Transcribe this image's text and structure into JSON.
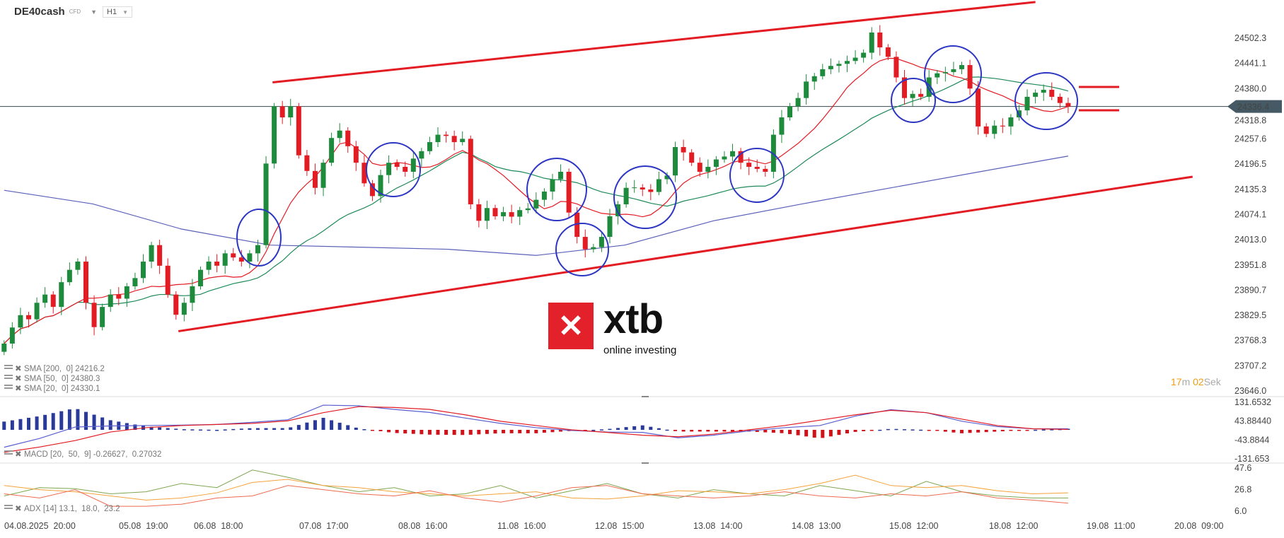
{
  "header": {
    "symbol": "DE40cash",
    "symbol_type": "CFD",
    "timeframe": "H1"
  },
  "timer": {
    "minutes": "17",
    "minutes_unit": "m",
    "seconds": "02",
    "seconds_unit": "Sek"
  },
  "logo": {
    "brand": "xtb",
    "tagline": "online investing"
  },
  "colors": {
    "bull": "#1e8a3c",
    "bear": "#e31b23",
    "sma20": "#e31b23",
    "sma50": "#1e8a5a",
    "sma200": "#5a5fb8",
    "trendline": "#e31b23",
    "annotation": "#2c36c2",
    "price_tag": "#455a64"
  },
  "chart_data": [
    {
      "type": "candlestick",
      "title": "",
      "price_axis_ticks": [
        "24502.3",
        "24441.1",
        "24380.0",
        "24318.8",
        "24257.6",
        "24196.5",
        "24135.3",
        "24074.1",
        "24013.0",
        "23951.8",
        "23890.7",
        "23829.5",
        "23768.3",
        "23707.2",
        "23646.0"
      ],
      "ylim": [
        23646.0,
        24502.3
      ],
      "current_price": "24336.4",
      "time_axis_ticks": [
        "04.08.2025  20:00",
        "05.08  19:00",
        "06.08  18:00",
        "07.08  17:00",
        "08.08  16:00",
        "11.08  16:00",
        "12.08  15:00",
        "13.08  14:00",
        "14.08  13:00",
        "15.08  12:00",
        "18.08  12:00",
        "19.08  11:00",
        "20.08  09:00"
      ],
      "closes": [
        23761,
        23800,
        23830,
        23820,
        23860,
        23880,
        23850,
        23910,
        23940,
        23960,
        23860,
        23801,
        23850,
        23880,
        23870,
        23900,
        23920,
        23960,
        24000,
        23950,
        23880,
        23831,
        23860,
        23900,
        23940,
        23960,
        23950,
        23980,
        23970,
        23960,
        23980,
        24000,
        24198,
        24337,
        24310,
        24337,
        24218,
        24180,
        24139,
        24200,
        24260,
        24278,
        24240,
        24200,
        24150,
        24119,
        24170,
        24200,
        24190,
        24178,
        24210,
        24228,
        24250,
        24268,
        24265,
        24250,
        24258,
        24099,
        24059,
        24090,
        24070,
        24080,
        24069,
        24085,
        24089,
        24110,
        24130,
        24160,
        24178,
        24079,
        24020,
        23990,
        23995,
        24020,
        24070,
        24099,
        24139,
        24140,
        24135,
        24129,
        24160,
        24169,
        24238,
        24225,
        24200,
        24178,
        24190,
        24208,
        24215,
        24228,
        24200,
        24190,
        24185,
        24178,
        24268,
        24310,
        24337,
        24357,
        24397,
        24410,
        24427,
        24435,
        24440,
        24447,
        24455,
        24467,
        24516,
        24480,
        24457,
        24407,
        24357,
        24367,
        24360,
        24407,
        24417,
        24420,
        24427,
        24437,
        24380,
        24288,
        24270,
        24290,
        24288,
        24310,
        24327,
        24360,
        24370,
        24377,
        24360,
        24345,
        24336.4
      ],
      "sma200_path": [
        24133,
        24100,
        24039,
        24000,
        23995,
        23990,
        23975,
        24000,
        24059,
        24100,
        24139,
        24178,
        24216.2
      ],
      "legend": [
        {
          "name": "SMA",
          "params": "[200,  0]",
          "value": "24216.2"
        },
        {
          "name": "SMA",
          "params": "[50,  0]",
          "value": "24380.3"
        },
        {
          "name": "SMA",
          "params": "[20,  0]",
          "value": "24330.1"
        }
      ]
    },
    {
      "type": "line",
      "name": "MACD",
      "legend": {
        "name": "MACD",
        "params": "[20,  50,  9]",
        "values": "-0.26627,  0.27032"
      },
      "ticks": [
        "131.6532",
        "43.88440",
        "-43.8844",
        "-131.653"
      ],
      "ylim": [
        -131.653,
        131.6532
      ],
      "macd": [
        -81,
        -40,
        13,
        18,
        20,
        22,
        25,
        35,
        47,
        115,
        112,
        95,
        81,
        55,
        30,
        10,
        -3,
        -10,
        -12,
        -37,
        -25,
        -5,
        10,
        20,
        64,
        94,
        80,
        40,
        15,
        5,
        5
      ],
      "signal": [
        -105,
        -80,
        -50,
        -10,
        10,
        20,
        25,
        30,
        42,
        80,
        108,
        104,
        95,
        70,
        40,
        20,
        0,
        -12,
        -25,
        -32,
        -20,
        0,
        20,
        45,
        70,
        91,
        80,
        50,
        20,
        5,
        2
      ]
    },
    {
      "type": "line",
      "name": "ADX",
      "legend": {
        "name": "ADX",
        "params": "[14]",
        "values": "13.1,  18.0,  23.2"
      },
      "ticks": [
        "47.6",
        "26.8",
        "6.0"
      ],
      "ylim": [
        6.0,
        47.6
      ],
      "adx": [
        20,
        28,
        27,
        22,
        24,
        32,
        28,
        45,
        38,
        30,
        24,
        28,
        20,
        22,
        30,
        18,
        25,
        32,
        22,
        18,
        26,
        22,
        20,
        30,
        25,
        20,
        34,
        24,
        20,
        18,
        18
      ],
      "plus_di": [
        30,
        26,
        24,
        20,
        16,
        18,
        23,
        33,
        36,
        30,
        28,
        24,
        22,
        20,
        22,
        24,
        18,
        17,
        20,
        25,
        24,
        22,
        26,
        32,
        40,
        30,
        28,
        30,
        25,
        22,
        23
      ],
      "minus_di": [
        22,
        18,
        26,
        10,
        10,
        12,
        18,
        20,
        30,
        26,
        22,
        20,
        25,
        18,
        14,
        20,
        28,
        30,
        22,
        20,
        18,
        20,
        24,
        20,
        18,
        22,
        20,
        24,
        18,
        16,
        13
      ]
    }
  ]
}
